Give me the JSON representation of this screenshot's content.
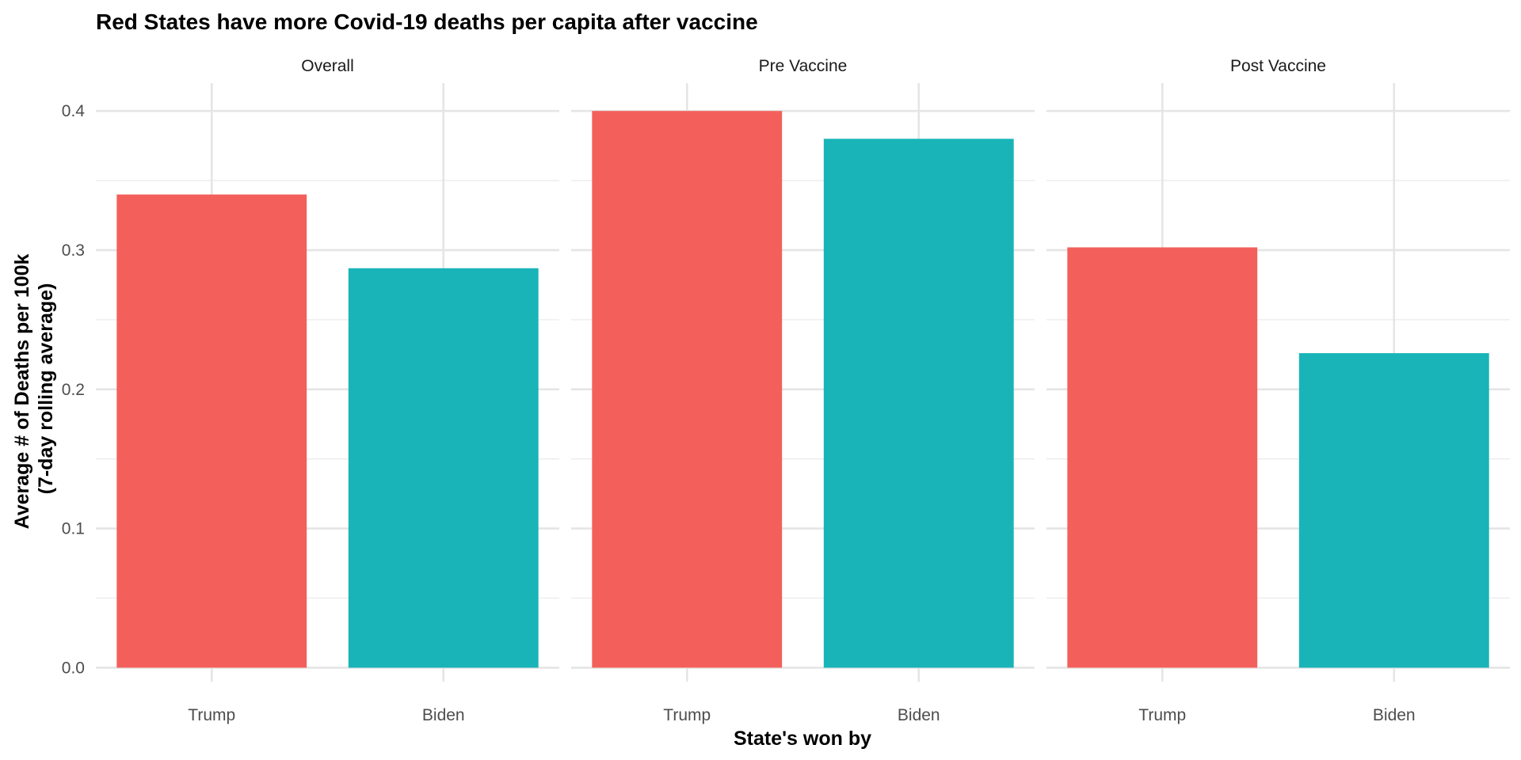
{
  "chart_data": {
    "type": "bar",
    "title": "Red States have more Covid-19 deaths per capita after vaccine",
    "xlabel": "State's won by",
    "ylabel_lines": [
      "Average # of Deaths per 100k",
      "(7-day rolling average)"
    ],
    "categories": [
      "Trump",
      "Biden"
    ],
    "category_colors": [
      "#F3605C",
      "#19B4B8"
    ],
    "ylim": [
      -0.01,
      0.42
    ],
    "y_ticks": [
      "0.0",
      "0.1",
      "0.2",
      "0.3",
      "0.4"
    ],
    "y_tick_values": [
      0.0,
      0.1,
      0.2,
      0.3,
      0.4
    ],
    "grid": true,
    "legend": "none",
    "facets": [
      {
        "name": "Overall",
        "values": [
          0.34,
          0.287
        ]
      },
      {
        "name": "Pre Vaccine",
        "values": [
          0.4,
          0.38
        ]
      },
      {
        "name": "Post Vaccine",
        "values": [
          0.302,
          0.226
        ]
      }
    ]
  }
}
